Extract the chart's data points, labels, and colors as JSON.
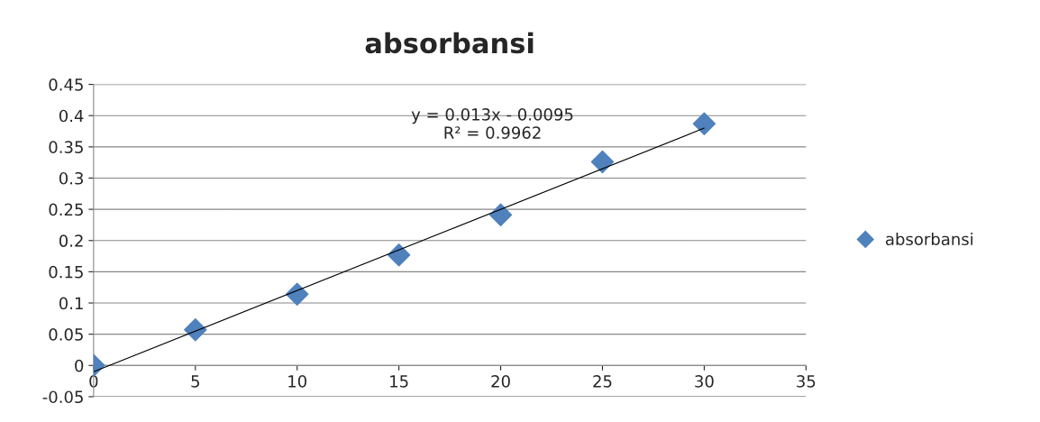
{
  "chart_data": {
    "type": "scatter",
    "title": "absorbansi",
    "x": [
      0,
      5,
      10,
      15,
      20,
      25,
      30
    ],
    "series": [
      {
        "name": "absorbansi",
        "color": "#4f81bd",
        "marker": "diamond",
        "values": [
          0,
          0.057,
          0.114,
          0.177,
          0.241,
          0.326,
          0.387
        ]
      },
      {
        "type": "line",
        "color": "#000000",
        "x": [
          0,
          30
        ],
        "values": [
          -0.01,
          0.38
        ]
      }
    ],
    "xlim": [
      0,
      35
    ],
    "xticks": [
      0,
      5,
      10,
      15,
      20,
      25,
      30,
      35
    ],
    "ylim": [
      -0.05,
      0.45
    ],
    "yticks": [
      -0.05,
      0,
      0.05,
      0.1,
      0.15,
      0.2,
      0.25,
      0.3,
      0.35,
      0.4,
      0.45
    ],
    "grid": "y",
    "legend": "right",
    "annotations": [
      "y = 0.013x - 0.0095\nR² = 0.9962"
    ]
  }
}
